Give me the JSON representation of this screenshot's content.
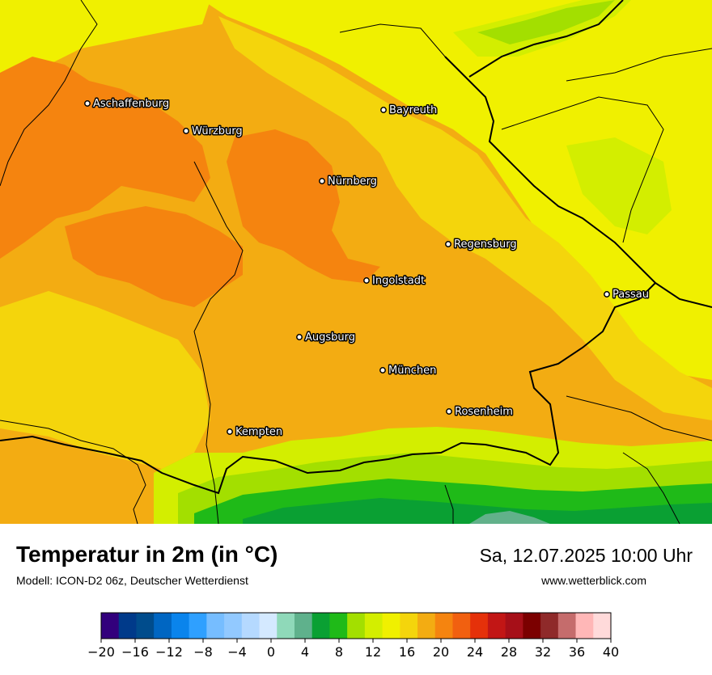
{
  "map": {
    "cities": [
      {
        "name": "Aschaffenburg"
      },
      {
        "name": "Würzburg"
      },
      {
        "name": "Bayreuth"
      },
      {
        "name": "Nürnberg"
      },
      {
        "name": "Regensburg"
      },
      {
        "name": "Ingolstadt"
      },
      {
        "name": "Passau"
      },
      {
        "name": "Augsburg"
      },
      {
        "name": "München"
      },
      {
        "name": "Rosenheim"
      },
      {
        "name": "Kempten"
      }
    ],
    "colors": {
      "orange_dark": "#f5840f",
      "orange": "#f3ac12",
      "gold": "#f4d50c",
      "yellow": "#f0f000",
      "yellow_green": "#d3ee00",
      "light_green": "#a3df00",
      "green": "#1fba18",
      "dark_green": "#0aa033",
      "teal": "#62b18a",
      "border": "#000000"
    }
  },
  "header": {
    "title": "Temperatur in 2m (in °C)",
    "model": "Modell: ICON-D2 06z, Deutscher Wetterdienst",
    "datetime": "Sa, 12.07.2025 10:00 Uhr",
    "website": "www.wetterblick.com"
  },
  "legend": {
    "min": -20,
    "max": 40,
    "tick_labels": [
      "−20",
      "−16",
      "−12",
      "−8",
      "−4",
      "0",
      "4",
      "8",
      "12",
      "16",
      "20",
      "24",
      "28",
      "32",
      "36",
      "40"
    ],
    "colors": [
      "#32007c",
      "#003a8a",
      "#004c8c",
      "#0066c2",
      "#0a84ec",
      "#2fa0ff",
      "#76bdff",
      "#92c9ff",
      "#b5d9ff",
      "#d4e9ff",
      "#8fd9b9",
      "#5fb18c",
      "#0aa033",
      "#1fba18",
      "#a3df00",
      "#d3ee00",
      "#f0f000",
      "#f4d50c",
      "#f3ac12",
      "#f5840f",
      "#f16010",
      "#e5310a",
      "#c21615",
      "#a60f18",
      "#7b0000",
      "#8f2a2a",
      "#c56c6c",
      "#ffb7b7",
      "#ffdada"
    ]
  }
}
